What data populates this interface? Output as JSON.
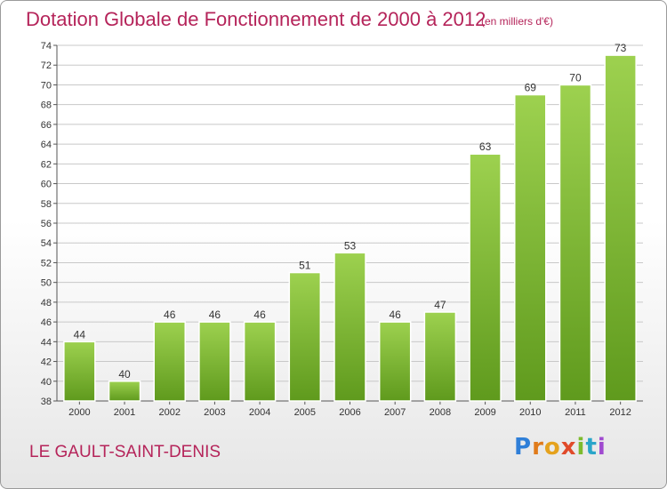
{
  "header": {
    "title": "Dotation Globale de Fonctionnement de 2000 à 2012",
    "unit": "(en milliers d'€)"
  },
  "footer": {
    "commune": "LE GAULT-SAINT-DENIS",
    "brand": "Proxiti"
  },
  "colors": {
    "title": "#b5245a",
    "bar_top": "#9dd14f",
    "bar_bottom": "#5f9a1d",
    "grid": "#c8c8c8"
  },
  "chart_data": {
    "type": "bar",
    "title": "Dotation Globale de Fonctionnement de 2000 à 2012",
    "subtitle": "(en milliers d'€)",
    "categories": [
      "2000",
      "2001",
      "2002",
      "2003",
      "2004",
      "2005",
      "2006",
      "2007",
      "2008",
      "2009",
      "2010",
      "2011",
      "2012"
    ],
    "values": [
      44,
      40,
      46,
      46,
      46,
      51,
      53,
      46,
      47,
      63,
      69,
      70,
      73
    ],
    "ylim": [
      38,
      74
    ],
    "yticks": [
      38,
      40,
      42,
      44,
      46,
      48,
      50,
      52,
      54,
      56,
      58,
      60,
      62,
      64,
      66,
      68,
      70,
      72,
      74
    ],
    "grid": true,
    "data_labels": true
  }
}
